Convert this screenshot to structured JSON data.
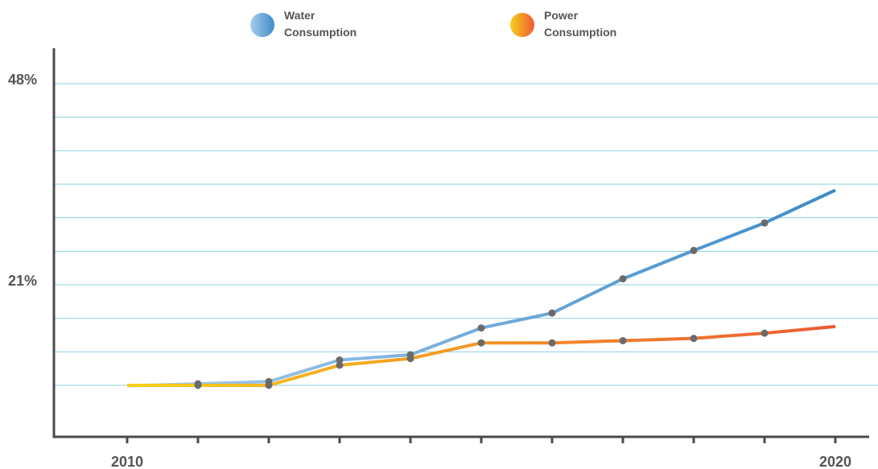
{
  "chart_data": {
    "type": "line",
    "x": [
      2010,
      2011,
      2012,
      2013,
      2014,
      2015,
      2016,
      2017,
      2018,
      2019,
      2020
    ],
    "x_tick_labels": [
      "2010",
      "",
      "",
      "",
      "",
      "",
      "",
      "",
      "",
      "",
      "2020"
    ],
    "y_tick_labels": [
      {
        "value": 48,
        "label": "48%"
      },
      {
        "value": 21,
        "label": "21%"
      }
    ],
    "ylim": [
      0,
      55
    ],
    "grid": "horizontal",
    "legend_position": "top",
    "series": [
      {
        "name": "Water Consumption",
        "legend_label_lines": [
          "Water",
          "Consumption"
        ],
        "values": [
          null,
          7.7,
          8.0,
          10.9,
          11.6,
          15.2,
          17.2,
          21.8,
          25.6,
          29.3,
          33.7
        ],
        "colors": {
          "start": "#a9cdea",
          "end": "#3d8ac8"
        }
      },
      {
        "name": "Power Consumption",
        "legend_label_lines": [
          "Power",
          "Consumption"
        ],
        "values": [
          null,
          7.5,
          7.5,
          10.2,
          11.1,
          13.2,
          13.2,
          13.5,
          13.8,
          14.5,
          15.4
        ],
        "colors": {
          "start": "#f7cf1a",
          "end": "#ee5a33"
        }
      }
    ],
    "marker_color": "#6b6b6b",
    "grid_color": "#8ccfe3",
    "axis_color": "#4a4a4a"
  }
}
